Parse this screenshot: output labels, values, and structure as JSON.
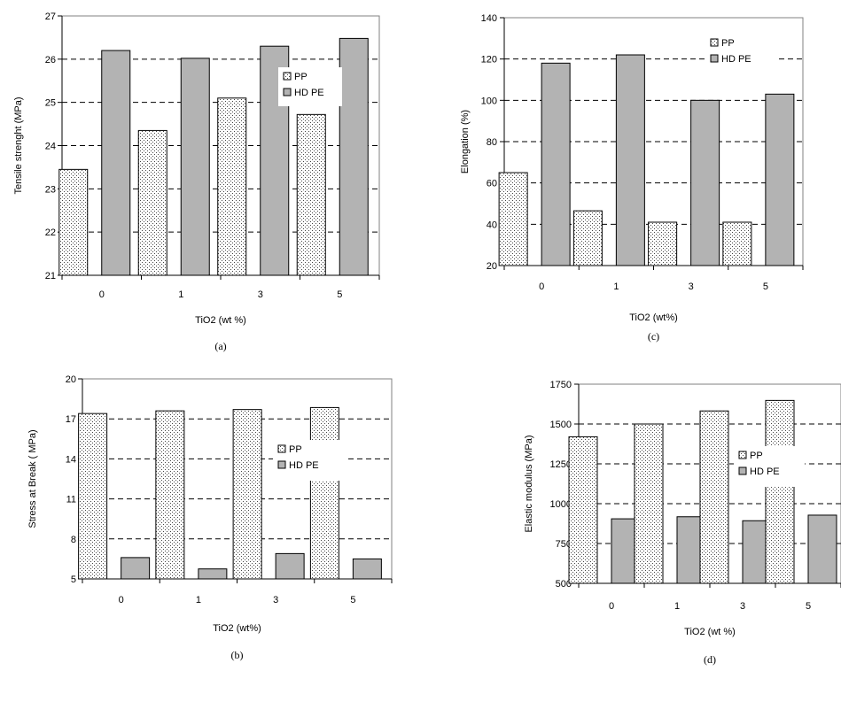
{
  "figure": {
    "background": "#ffffff"
  },
  "chart_data": [
    {
      "id": "a",
      "panel_label": "(a)",
      "type": "bar",
      "categories": [
        "0",
        "1",
        "3",
        "5"
      ],
      "series": [
        {
          "name": "PP",
          "values": [
            23.45,
            24.35,
            25.1,
            24.72
          ],
          "fill": "dotted-white"
        },
        {
          "name": "HD PE",
          "values": [
            26.2,
            26.02,
            26.3,
            26.48
          ],
          "fill": "#b3b3b3"
        }
      ],
      "xlabel": "TiO2 (wt %)",
      "ylabel": "Tensile strenght (MPa)",
      "ylim": [
        21,
        27
      ],
      "yticks": [
        "21",
        "22",
        "23",
        "24",
        "25",
        "26",
        "27"
      ],
      "grid": true,
      "legend": "right"
    },
    {
      "id": "c",
      "panel_label": "(c)",
      "type": "bar",
      "categories": [
        "0",
        "1",
        "3",
        "5"
      ],
      "series": [
        {
          "name": "PP",
          "values": [
            65,
            46.5,
            41,
            41
          ],
          "fill": "dotted-white"
        },
        {
          "name": "HD PE",
          "values": [
            118,
            122,
            100,
            103
          ],
          "fill": "#b3b3b3"
        }
      ],
      "xlabel": "TiO2 (wt%)",
      "ylabel": "Elongation (%)",
      "ylim": [
        20,
        140
      ],
      "yticks": [
        "20",
        "40",
        "60",
        "80",
        "100",
        "120",
        "140"
      ],
      "grid": true,
      "legend": "top-right"
    },
    {
      "id": "b",
      "panel_label": "(b)",
      "type": "bar",
      "categories": [
        "0",
        "1",
        "3",
        "5"
      ],
      "series": [
        {
          "name": "PP",
          "values": [
            17.4,
            17.6,
            17.7,
            17.85
          ],
          "fill": "dotted-white"
        },
        {
          "name": "HD PE",
          "values": [
            6.6,
            5.75,
            6.9,
            6.5
          ],
          "fill": "#b3b3b3"
        }
      ],
      "xlabel": "TiO2 (wt%)",
      "ylabel": "Stress at Break ( MPa)",
      "ylim": [
        5,
        20
      ],
      "yticks": [
        "5",
        "8",
        "11",
        "14",
        "17",
        "20"
      ],
      "grid": true,
      "legend": "right"
    },
    {
      "id": "d",
      "panel_label": "(d)",
      "type": "bar",
      "categories": [
        "0",
        "1",
        "3",
        "5"
      ],
      "series": [
        {
          "name": "PP",
          "values": [
            1420,
            1500,
            1582,
            1648
          ],
          "fill": "dotted-white"
        },
        {
          "name": "HD PE",
          "values": [
            905,
            918,
            893,
            928
          ],
          "fill": "#b3b3b3"
        }
      ],
      "xlabel": "TiO2 (wt %)",
      "ylabel": "Elastic modulus (MPa)",
      "ylim": [
        500,
        1750
      ],
      "yticks": [
        "500",
        "750",
        "1000",
        "1250",
        "1500",
        "1750"
      ],
      "grid": true,
      "legend": "right"
    }
  ]
}
